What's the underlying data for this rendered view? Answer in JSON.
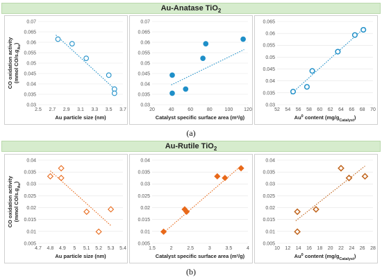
{
  "figure": {
    "caption_a": "(a)",
    "caption_b": "(b)"
  },
  "sections": [
    {
      "title_main": "Au-Anatase TiO",
      "title_sub": "2"
    },
    {
      "title_main": "Au-Rutile TiO",
      "title_sub": "2"
    }
  ],
  "ylabel_line1": "CO oxidation activity",
  "ylabel_line2": "(mmol CO/s.g",
  "ylabel_sub": "Au",
  "ylabel_end": ")",
  "chart_data": [
    {
      "type": "scatter",
      "marker": "circle",
      "fill": "open",
      "color": "#1f8fc8",
      "xlabel": "Au particle size (nm)",
      "xlim": [
        2.5,
        3.7
      ],
      "xticks": [
        2.5,
        2.7,
        2.9,
        3.1,
        3.3,
        3.5,
        3.7
      ],
      "ylim": [
        0.03,
        0.07
      ],
      "yticks": [
        0.03,
        0.035,
        0.04,
        0.045,
        0.05,
        0.055,
        0.06,
        0.065,
        0.07
      ],
      "points": [
        [
          2.78,
          0.0615
        ],
        [
          2.98,
          0.0593
        ],
        [
          3.18,
          0.0523
        ],
        [
          3.5,
          0.0442
        ],
        [
          3.58,
          0.0375
        ],
        [
          3.58,
          0.0355
        ]
      ],
      "trendline": [
        [
          2.75,
          0.0635
        ],
        [
          3.6,
          0.037
        ]
      ]
    },
    {
      "type": "scatter",
      "marker": "circle",
      "fill": "solid",
      "color": "#1f8fc8",
      "xlabel": "Catalyst specific surface area (m²/g)",
      "xlim": [
        20,
        120
      ],
      "xticks": [
        20,
        40,
        60,
        80,
        100,
        120
      ],
      "ylim": [
        0.03,
        0.07
      ],
      "yticks": [
        0.03,
        0.035,
        0.04,
        0.045,
        0.05,
        0.055,
        0.06,
        0.065,
        0.07
      ],
      "points": [
        [
          41,
          0.0442
        ],
        [
          41,
          0.0355
        ],
        [
          55,
          0.0375
        ],
        [
          73,
          0.0523
        ],
        [
          76,
          0.0593
        ],
        [
          115,
          0.0615
        ]
      ],
      "trendline": [
        [
          40,
          0.0395
        ],
        [
          116,
          0.0565
        ]
      ]
    },
    {
      "type": "scatter",
      "marker": "circle",
      "fill": "open-thick",
      "color": "#1f8fc8",
      "xlabel": "Au",
      "xlabel_sup": "0",
      "xlabel_mid": " content (mg/g",
      "xlabel_sub": "Catalyst",
      "xlabel_end": ")",
      "xlim": [
        52,
        70
      ],
      "xticks": [
        52,
        54,
        56,
        58,
        60,
        62,
        64,
        66,
        68,
        70
      ],
      "ylim": [
        0.03,
        0.065
      ],
      "yticks": [
        0.03,
        0.035,
        0.04,
        0.045,
        0.05,
        0.055,
        0.06,
        0.065
      ],
      "points": [
        [
          55,
          0.0355
        ],
        [
          57.6,
          0.0375
        ],
        [
          58.6,
          0.0442
        ],
        [
          63.4,
          0.0523
        ],
        [
          66.6,
          0.0593
        ],
        [
          68.2,
          0.0615
        ]
      ],
      "trendline": [
        [
          54.6,
          0.0345
        ],
        [
          68.5,
          0.0625
        ]
      ]
    },
    {
      "type": "scatter",
      "marker": "diamond",
      "fill": "open",
      "color": "#e8691a",
      "xlabel": "Au particle size (nm)",
      "xlim": [
        4.7,
        5.4
      ],
      "xticks": [
        4.7,
        4.8,
        4.9,
        5,
        5.1,
        5.2,
        5.3,
        5.4
      ],
      "ylim": [
        0.005,
        0.04
      ],
      "yticks": [
        0.005,
        0.01,
        0.015,
        0.02,
        0.025,
        0.03,
        0.035,
        0.04
      ],
      "points": [
        [
          4.8,
          0.0332
        ],
        [
          4.89,
          0.0366
        ],
        [
          4.89,
          0.0325
        ],
        [
          5.1,
          0.0183
        ],
        [
          5.2,
          0.0099
        ],
        [
          5.3,
          0.0193
        ]
      ],
      "trendline": [
        [
          4.8,
          0.0355
        ],
        [
          5.3,
          0.0125
        ]
      ]
    },
    {
      "type": "scatter",
      "marker": "diamond",
      "fill": "solid",
      "color": "#e8691a",
      "xlabel": "Catalyst specific surface area (m²/g)",
      "xlim": [
        1.5,
        4
      ],
      "xticks": [
        1.5,
        2,
        2.5,
        3,
        3.5,
        4
      ],
      "ylim": [
        0.005,
        0.04
      ],
      "yticks": [
        0.005,
        0.01,
        0.015,
        0.02,
        0.025,
        0.03,
        0.035,
        0.04
      ],
      "points": [
        [
          1.8,
          0.0099
        ],
        [
          2.35,
          0.0193
        ],
        [
          2.4,
          0.0183
        ],
        [
          3.2,
          0.0332
        ],
        [
          3.4,
          0.0325
        ],
        [
          3.82,
          0.0366
        ]
      ],
      "trendline": [
        [
          1.8,
          0.0095
        ],
        [
          3.85,
          0.038
        ]
      ]
    },
    {
      "type": "scatter",
      "marker": "diamond",
      "fill": "open-thick",
      "color": "#c0641c",
      "xlabel": "Au",
      "xlabel_sup": "0",
      "xlabel_mid": " content (mg/g",
      "xlabel_sub": "Catalyst",
      "xlabel_end": ")",
      "xlim": [
        10,
        28
      ],
      "xticks": [
        10,
        12,
        14,
        16,
        18,
        20,
        22,
        24,
        26,
        28
      ],
      "ylim": [
        0.005,
        0.04
      ],
      "yticks": [
        0.005,
        0.01,
        0.015,
        0.02,
        0.025,
        0.03,
        0.035,
        0.04
      ],
      "points": [
        [
          13.8,
          0.0183
        ],
        [
          13.8,
          0.0099
        ],
        [
          17.3,
          0.0193
        ],
        [
          22,
          0.0366
        ],
        [
          23.5,
          0.0325
        ],
        [
          26.5,
          0.0332
        ]
      ],
      "trendline": [
        [
          13.5,
          0.0145
        ],
        [
          26.5,
          0.0375
        ]
      ]
    }
  ]
}
